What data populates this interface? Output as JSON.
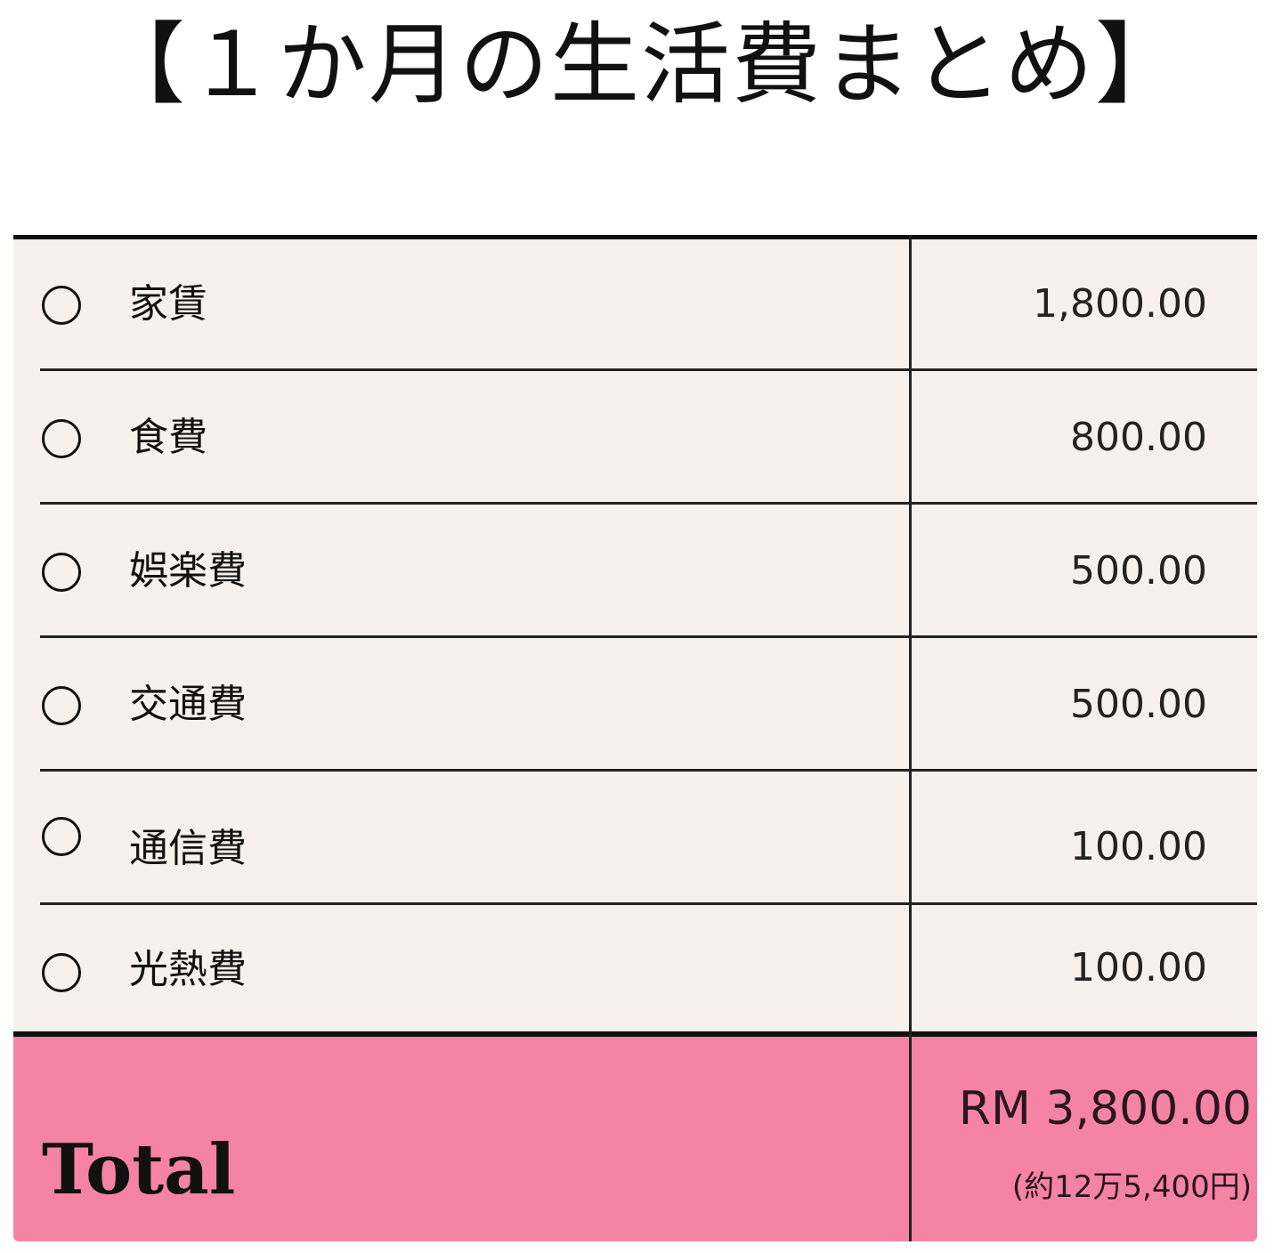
{
  "title": "【１か月の生活費まとめ】",
  "items": [
    {
      "label": "家賃",
      "value": "1,800.00"
    },
    {
      "label": "食費",
      "value": "800.00"
    },
    {
      "label": "娯楽費",
      "value": "500.00"
    },
    {
      "label": "交通費",
      "value": "500.00"
    },
    {
      "label": "通信費",
      "value": "100.00"
    },
    {
      "label": "光熱費",
      "value": "100.00"
    }
  ],
  "bullet_icon": "circle-icon",
  "total": {
    "label": "Total",
    "value": "RM 3,800.00",
    "note": "(約12万5,400円)"
  },
  "colors": {
    "row_bg": "#f6f1ec",
    "total_bg": "#f583a6"
  }
}
